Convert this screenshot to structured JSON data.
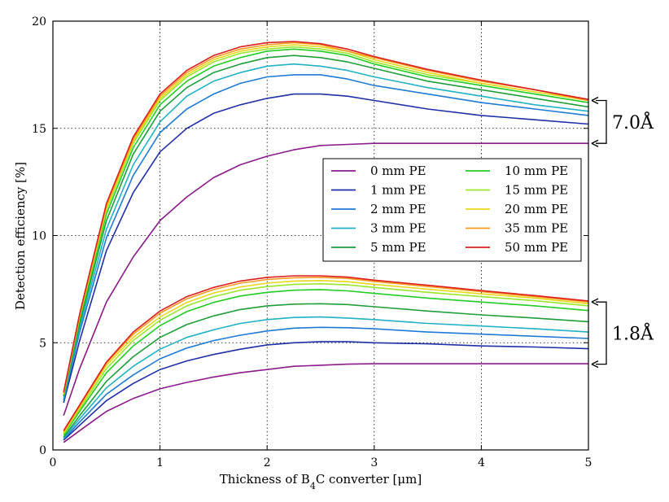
{
  "chart_data": {
    "type": "line",
    "xlabel": "Thickness of B4C converter [μm]",
    "ylabel": "Detection efficiency [%]",
    "xlim": [
      0,
      5
    ],
    "ylim": [
      0,
      20
    ],
    "xticks": [
      0,
      1,
      2,
      3,
      4,
      5
    ],
    "yticks": [
      0,
      5,
      10,
      15,
      20
    ],
    "grid": true,
    "legend_position": "center-right",
    "annotations": [
      {
        "label": "7.0Å",
        "y_range": [
          14.3,
          16.3
        ]
      },
      {
        "label": "1.8Å",
        "y_range": [
          4.0,
          6.9
        ]
      }
    ],
    "x": [
      0.1,
      0.25,
      0.5,
      0.75,
      1.0,
      1.25,
      1.5,
      1.75,
      2.0,
      2.25,
      2.5,
      2.75,
      3.0,
      3.5,
      4.0,
      4.5,
      5.0
    ],
    "series": [
      {
        "name": "0 mm PE",
        "color": "#8b1a8b",
        "group": "7.0Å",
        "values": [
          1.6,
          3.8,
          6.9,
          9.0,
          10.7,
          11.8,
          12.7,
          13.3,
          13.7,
          14.0,
          14.2,
          14.25,
          14.3,
          14.3,
          14.3,
          14.3,
          14.3
        ]
      },
      {
        "name": "1 mm PE",
        "color": "#1f2fa8",
        "group": "7.0Å",
        "values": [
          2.2,
          5.1,
          9.3,
          12.0,
          13.9,
          15.0,
          15.7,
          16.1,
          16.4,
          16.6,
          16.6,
          16.5,
          16.3,
          15.9,
          15.6,
          15.4,
          15.2
        ]
      },
      {
        "name": "2 mm PE",
        "color": "#1f7ad6",
        "group": "7.0Å",
        "values": [
          2.3,
          5.5,
          9.9,
          12.8,
          14.8,
          15.9,
          16.6,
          17.1,
          17.4,
          17.5,
          17.5,
          17.3,
          17.0,
          16.6,
          16.2,
          15.9,
          15.6
        ]
      },
      {
        "name": "3 mm PE",
        "color": "#20b2c4",
        "group": "7.0Å",
        "values": [
          2.4,
          5.7,
          10.3,
          13.3,
          15.3,
          16.5,
          17.2,
          17.6,
          17.9,
          18.0,
          17.9,
          17.7,
          17.4,
          16.9,
          16.5,
          16.1,
          15.8
        ]
      },
      {
        "name": "5 mm PE",
        "color": "#1e9e3a",
        "group": "7.0Å",
        "values": [
          2.5,
          5.9,
          10.7,
          13.8,
          15.8,
          16.9,
          17.6,
          18.0,
          18.3,
          18.4,
          18.3,
          18.1,
          17.8,
          17.2,
          16.8,
          16.4,
          16.0
        ]
      },
      {
        "name": "10 mm PE",
        "color": "#22cc22",
        "group": "7.0Å",
        "values": [
          2.55,
          6.1,
          11.0,
          14.1,
          16.1,
          17.2,
          17.9,
          18.3,
          18.6,
          18.7,
          18.6,
          18.4,
          18.0,
          17.4,
          17.0,
          16.6,
          16.2
        ]
      },
      {
        "name": "15 mm PE",
        "color": "#9ae62a",
        "group": "7.0Å",
        "values": [
          2.6,
          6.2,
          11.2,
          14.3,
          16.3,
          17.4,
          18.1,
          18.5,
          18.7,
          18.8,
          18.7,
          18.5,
          18.1,
          17.5,
          17.1,
          16.7,
          16.3
        ]
      },
      {
        "name": "20 mm PE",
        "color": "#e8d81a",
        "group": "7.0Å",
        "values": [
          2.6,
          6.25,
          11.3,
          14.4,
          16.4,
          17.5,
          18.2,
          18.6,
          18.8,
          18.9,
          18.8,
          18.6,
          18.2,
          17.6,
          17.1,
          16.7,
          16.3
        ]
      },
      {
        "name": "35 mm PE",
        "color": "#f59a1e",
        "group": "7.0Å",
        "values": [
          2.65,
          6.3,
          11.4,
          14.5,
          16.5,
          17.6,
          18.3,
          18.7,
          18.9,
          19.0,
          18.9,
          18.6,
          18.3,
          17.7,
          17.2,
          16.8,
          16.3
        ]
      },
      {
        "name": "50 mm PE",
        "color": "#dd1e1e",
        "group": "7.0Å",
        "values": [
          2.7,
          6.35,
          11.5,
          14.6,
          16.6,
          17.7,
          18.4,
          18.8,
          19.0,
          19.05,
          18.95,
          18.7,
          18.35,
          17.75,
          17.25,
          16.8,
          16.35
        ]
      },
      {
        "name": "0 mm PE",
        "color": "#8b1a8b",
        "group": "1.8Å",
        "values": [
          0.35,
          0.9,
          1.8,
          2.4,
          2.85,
          3.15,
          3.4,
          3.6,
          3.75,
          3.9,
          3.95,
          4.0,
          4.02,
          4.02,
          4.02,
          4.02,
          4.02
        ]
      },
      {
        "name": "1 mm PE",
        "color": "#1f2fa8",
        "group": "1.8Å",
        "values": [
          0.45,
          1.15,
          2.3,
          3.1,
          3.75,
          4.15,
          4.45,
          4.7,
          4.9,
          5.0,
          5.05,
          5.05,
          5.0,
          4.95,
          4.85,
          4.8,
          4.72
        ]
      },
      {
        "name": "2 mm PE",
        "color": "#1f7ad6",
        "group": "1.8Å",
        "values": [
          0.5,
          1.3,
          2.6,
          3.5,
          4.25,
          4.75,
          5.1,
          5.35,
          5.55,
          5.68,
          5.72,
          5.7,
          5.65,
          5.5,
          5.4,
          5.3,
          5.2
        ]
      },
      {
        "name": "3 mm PE",
        "color": "#20b2c4",
        "group": "1.8Å",
        "values": [
          0.55,
          1.45,
          2.9,
          3.9,
          4.7,
          5.25,
          5.6,
          5.9,
          6.08,
          6.18,
          6.2,
          6.15,
          6.08,
          5.9,
          5.78,
          5.65,
          5.5
        ]
      },
      {
        "name": "5 mm PE",
        "color": "#1e9e3a",
        "group": "1.8Å",
        "values": [
          0.6,
          1.6,
          3.2,
          4.35,
          5.25,
          5.85,
          6.25,
          6.55,
          6.72,
          6.8,
          6.82,
          6.78,
          6.68,
          6.48,
          6.3,
          6.15,
          5.98
        ]
      },
      {
        "name": "10 mm PE",
        "color": "#22cc22",
        "group": "1.8Å",
        "values": [
          0.7,
          1.8,
          3.6,
          4.85,
          5.8,
          6.45,
          6.88,
          7.18,
          7.35,
          7.45,
          7.48,
          7.42,
          7.3,
          7.08,
          6.9,
          6.72,
          6.5
        ]
      },
      {
        "name": "15 mm PE",
        "color": "#9ae62a",
        "group": "1.8Å",
        "values": [
          0.75,
          1.9,
          3.8,
          5.1,
          6.05,
          6.72,
          7.15,
          7.45,
          7.62,
          7.72,
          7.75,
          7.7,
          7.58,
          7.35,
          7.15,
          6.96,
          6.72
        ]
      },
      {
        "name": "20 mm PE",
        "color": "#e8d81a",
        "group": "1.8Å",
        "values": [
          0.8,
          2.0,
          3.95,
          5.25,
          6.2,
          6.88,
          7.32,
          7.6,
          7.78,
          7.88,
          7.9,
          7.85,
          7.72,
          7.5,
          7.28,
          7.08,
          6.82
        ]
      },
      {
        "name": "35 mm PE",
        "color": "#f59a1e",
        "group": "1.8Å",
        "values": [
          0.85,
          2.05,
          4.05,
          5.4,
          6.38,
          7.05,
          7.48,
          7.78,
          7.95,
          8.03,
          8.05,
          8.0,
          7.86,
          7.62,
          7.38,
          7.15,
          6.9
        ]
      },
      {
        "name": "50 mm PE",
        "color": "#dd1e1e",
        "group": "1.8Å",
        "values": [
          0.9,
          2.1,
          4.1,
          5.5,
          6.48,
          7.15,
          7.58,
          7.88,
          8.05,
          8.12,
          8.12,
          8.06,
          7.92,
          7.68,
          7.43,
          7.2,
          6.95
        ]
      }
    ],
    "legend": [
      {
        "label": "0 mm PE",
        "color": "#8b1a8b"
      },
      {
        "label": "1 mm PE",
        "color": "#1f2fa8"
      },
      {
        "label": "2 mm PE",
        "color": "#1f7ad6"
      },
      {
        "label": "3 mm PE",
        "color": "#20b2c4"
      },
      {
        "label": "5 mm PE",
        "color": "#1e9e3a"
      },
      {
        "label": "10 mm PE",
        "color": "#22cc22"
      },
      {
        "label": "15 mm PE",
        "color": "#9ae62a"
      },
      {
        "label": "20 mm PE",
        "color": "#e8d81a"
      },
      {
        "label": "35 mm PE",
        "color": "#f59a1e"
      },
      {
        "label": "50 mm PE",
        "color": "#dd1e1e"
      }
    ]
  }
}
